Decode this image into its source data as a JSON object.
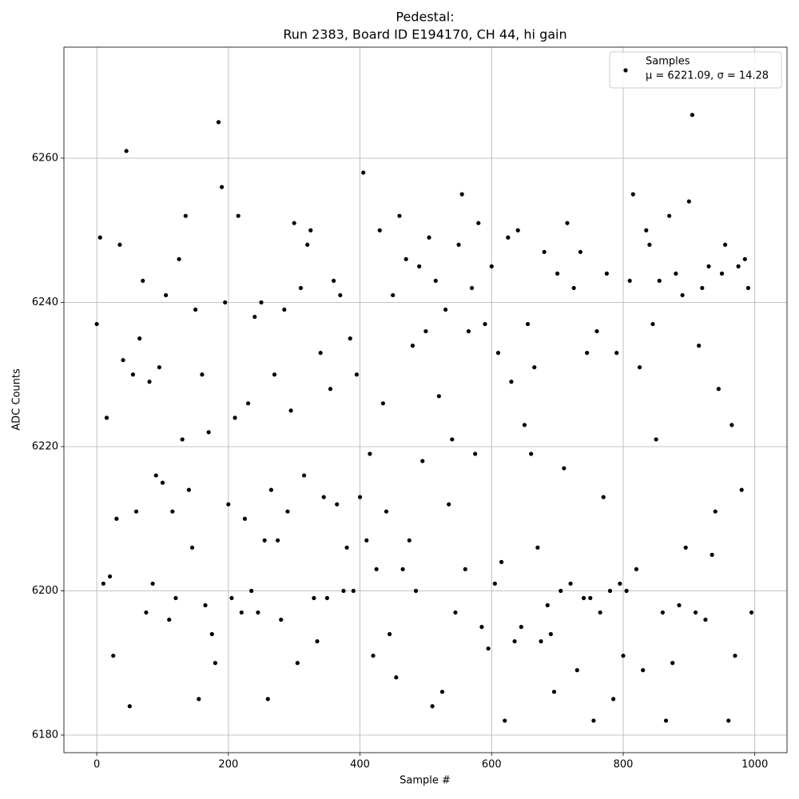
{
  "chart_data": {
    "type": "scatter",
    "title": "Pedestal:",
    "subtitle": "Run 2383, Board ID E194170, CH 44, hi gain",
    "x_label": "Sample #",
    "y_label": "ADC Counts",
    "xlim": [
      -49.95,
      1048.95
    ],
    "ylim": [
      6177.56,
      6275.4
    ],
    "xticks": [
      0,
      200,
      400,
      600,
      800,
      1000
    ],
    "yticks": [
      6180,
      6200,
      6220,
      6240,
      6260
    ],
    "grid": true,
    "legend": "upper right",
    "annotation": "μ = 6221.09, σ = 14.28",
    "series": [
      {
        "name": "Samples",
        "color": "#000000",
        "x": [
          0,
          5,
          10,
          15,
          20,
          25,
          30,
          35,
          40,
          45,
          50,
          55,
          60,
          65,
          70,
          75,
          80,
          85,
          90,
          95,
          100,
          105,
          110,
          115,
          120,
          125,
          130,
          135,
          140,
          145,
          150,
          155,
          160,
          165,
          170,
          175,
          180,
          185,
          190,
          195,
          200,
          205,
          210,
          215,
          220,
          225,
          230,
          235,
          240,
          245,
          250,
          255,
          260,
          265,
          270,
          275,
          280,
          285,
          290,
          295,
          300,
          305,
          310,
          315,
          320,
          325,
          330,
          335,
          340,
          345,
          350,
          355,
          360,
          365,
          370,
          375,
          380,
          385,
          390,
          395,
          400,
          405,
          410,
          415,
          420,
          425,
          430,
          435,
          440,
          445,
          450,
          455,
          460,
          465,
          470,
          475,
          480,
          485,
          490,
          495,
          500,
          505,
          510,
          515,
          520,
          525,
          530,
          535,
          540,
          545,
          550,
          555,
          560,
          565,
          570,
          575,
          580,
          585,
          590,
          595,
          600,
          605,
          610,
          615,
          620,
          625,
          630,
          635,
          640,
          645,
          650,
          655,
          660,
          665,
          670,
          675,
          680,
          685,
          690,
          695,
          700,
          705,
          710,
          715,
          720,
          725,
          730,
          735,
          740,
          745,
          750,
          755,
          760,
          765,
          770,
          775,
          780,
          785,
          790,
          795,
          800,
          805,
          810,
          815,
          820,
          825,
          830,
          835,
          840,
          845,
          850,
          855,
          860,
          865,
          870,
          875,
          880,
          885,
          890,
          895,
          900,
          905,
          910,
          915,
          920,
          925,
          930,
          935,
          940,
          945,
          950,
          955,
          960,
          965,
          970,
          975,
          980,
          985,
          990,
          995
        ],
        "values": [
          6237,
          6249,
          6201,
          6224,
          6202,
          6191,
          6210,
          6248,
          6232,
          6261,
          6184,
          6230,
          6211,
          6235,
          6243,
          6197,
          6229,
          6201,
          6216,
          6231,
          6215,
          6241,
          6196,
          6211,
          6199,
          6246,
          6221,
          6252,
          6214,
          6206,
          6239,
          6185,
          6230,
          6198,
          6222,
          6194,
          6190,
          6265,
          6256,
          6240,
          6212,
          6199,
          6224,
          6252,
          6197,
          6210,
          6226,
          6200,
          6238,
          6197,
          6240,
          6207,
          6185,
          6214,
          6230,
          6207,
          6196,
          6239,
          6211,
          6225,
          6251,
          6190,
          6242,
          6216,
          6248,
          6250,
          6199,
          6193,
          6233,
          6213,
          6199,
          6228,
          6243,
          6212,
          6241,
          6200,
          6206,
          6235,
          6200,
          6230,
          6213,
          6258,
          6207,
          6219,
          6191,
          6203,
          6250,
          6226,
          6211,
          6194,
          6241,
          6188,
          6252,
          6203,
          6246,
          6207,
          6234,
          6200,
          6245,
          6218,
          6236,
          6249,
          6184,
          6243,
          6227,
          6186,
          6239,
          6212,
          6221,
          6197,
          6248,
          6255,
          6203,
          6236,
          6242,
          6219,
          6251,
          6195,
          6237,
          6192,
          6245,
          6201,
          6233,
          6204,
          6182,
          6249,
          6229,
          6193,
          6250,
          6195,
          6223,
          6237,
          6219,
          6231,
          6206,
          6193,
          6247,
          6198,
          6194,
          6186,
          6244,
          6200,
          6217,
          6251,
          6201,
          6242,
          6189,
          6247,
          6199,
          6233,
          6199,
          6182,
          6236,
          6197,
          6213,
          6244,
          6200,
          6185,
          6233,
          6201,
          6191,
          6200,
          6243,
          6255,
          6203,
          6231,
          6189,
          6250,
          6248,
          6237,
          6221,
          6243,
          6197,
          6182,
          6252,
          6190,
          6244,
          6198,
          6241,
          6206,
          6254,
          6266,
          6197,
          6234,
          6242,
          6196,
          6245,
          6205,
          6211,
          6228,
          6244,
          6248,
          6182,
          6223,
          6191,
          6245,
          6214,
          6246,
          6242,
          6197
        ]
      }
    ]
  }
}
